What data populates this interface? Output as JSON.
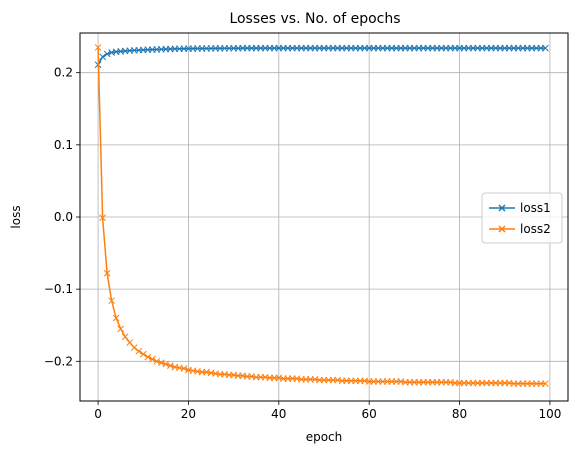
{
  "chart_data": {
    "type": "line",
    "title": "Losses vs. No. of epochs",
    "xlabel": "epoch",
    "ylabel": "loss",
    "xlim": [
      -4,
      104
    ],
    "ylim": [
      -0.255,
      0.255
    ],
    "xticks": [
      0,
      20,
      40,
      60,
      80,
      100
    ],
    "yticks": [
      -0.2,
      -0.1,
      0.0,
      0.1,
      0.2
    ],
    "xtick_labels": [
      "0",
      "20",
      "40",
      "60",
      "80",
      "100"
    ],
    "ytick_labels": [
      "−0.2",
      "−0.1",
      "0.0",
      "0.1",
      "0.2"
    ],
    "grid": true,
    "legend_position": "center-right",
    "marker": "x",
    "series": [
      {
        "name": "loss1",
        "color": "#1f77b4",
        "x_start": 0,
        "x_end": 99,
        "values": [
          0.211,
          0.222,
          0.226,
          0.228,
          0.229,
          0.2295,
          0.23,
          0.2305,
          0.231,
          0.2312,
          0.2315,
          0.2318,
          0.232,
          0.2322,
          0.2324,
          0.2326,
          0.2328,
          0.233,
          0.2331,
          0.2332,
          0.2333,
          0.2334,
          0.2335,
          0.2335,
          0.2336,
          0.2336,
          0.2337,
          0.2337,
          0.2338,
          0.2338,
          0.2339,
          0.2339,
          0.234,
          0.234,
          0.234,
          0.234,
          0.234,
          0.234,
          0.234,
          0.234,
          0.234,
          0.234,
          0.234,
          0.234,
          0.234,
          0.234,
          0.234,
          0.234,
          0.234,
          0.234,
          0.234,
          0.234,
          0.234,
          0.234,
          0.234,
          0.234,
          0.234,
          0.234,
          0.234,
          0.234,
          0.234,
          0.234,
          0.234,
          0.234,
          0.234,
          0.234,
          0.234,
          0.234,
          0.234,
          0.234,
          0.234,
          0.234,
          0.234,
          0.234,
          0.234,
          0.234,
          0.234,
          0.234,
          0.234,
          0.234,
          0.234,
          0.234,
          0.234,
          0.234,
          0.234,
          0.234,
          0.234,
          0.234,
          0.234,
          0.234,
          0.234,
          0.234,
          0.234,
          0.234,
          0.234,
          0.234,
          0.234,
          0.234,
          0.234,
          0.234
        ]
      },
      {
        "name": "loss2",
        "color": "#ff7f0e",
        "x_start": 0,
        "x_end": 99,
        "values": [
          0.235,
          -0.001,
          -0.078,
          -0.116,
          -0.14,
          -0.155,
          -0.166,
          -0.174,
          -0.181,
          -0.186,
          -0.19,
          -0.194,
          -0.197,
          -0.2,
          -0.202,
          -0.204,
          -0.206,
          -0.208,
          -0.209,
          -0.21,
          -0.212,
          -0.213,
          -0.214,
          -0.215,
          -0.215,
          -0.216,
          -0.217,
          -0.218,
          -0.218,
          -0.219,
          -0.219,
          -0.22,
          -0.22,
          -0.221,
          -0.221,
          -0.222,
          -0.222,
          -0.222,
          -0.223,
          -0.223,
          -0.223,
          -0.224,
          -0.224,
          -0.224,
          -0.224,
          -0.225,
          -0.225,
          -0.225,
          -0.225,
          -0.226,
          -0.226,
          -0.226,
          -0.226,
          -0.226,
          -0.227,
          -0.227,
          -0.227,
          -0.227,
          -0.227,
          -0.227,
          -0.228,
          -0.228,
          -0.228,
          -0.228,
          -0.228,
          -0.228,
          -0.228,
          -0.228,
          -0.229,
          -0.229,
          -0.229,
          -0.229,
          -0.229,
          -0.229,
          -0.229,
          -0.229,
          -0.229,
          -0.229,
          -0.229,
          -0.23,
          -0.23,
          -0.23,
          -0.23,
          -0.23,
          -0.23,
          -0.23,
          -0.23,
          -0.23,
          -0.23,
          -0.23,
          -0.23,
          -0.23,
          -0.231,
          -0.231,
          -0.231,
          -0.231,
          -0.231,
          -0.231,
          -0.231,
          -0.231
        ]
      }
    ]
  }
}
